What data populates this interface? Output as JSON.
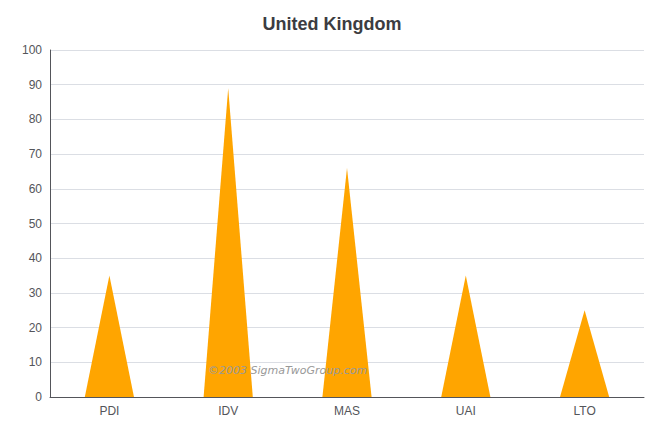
{
  "chart_data": {
    "type": "bar",
    "title": "United Kingdom",
    "categories": [
      "PDI",
      "IDV",
      "MAS",
      "UAI",
      "LTO"
    ],
    "values": [
      35,
      89,
      66,
      35,
      25
    ],
    "color": "#FFA500",
    "ylim": [
      0,
      100
    ],
    "yticks": [
      0,
      10,
      20,
      30,
      40,
      50,
      60,
      70,
      80,
      90,
      100
    ],
    "grid": true,
    "annotations": [
      "©2003 SigmaTwoGroup.com"
    ]
  }
}
